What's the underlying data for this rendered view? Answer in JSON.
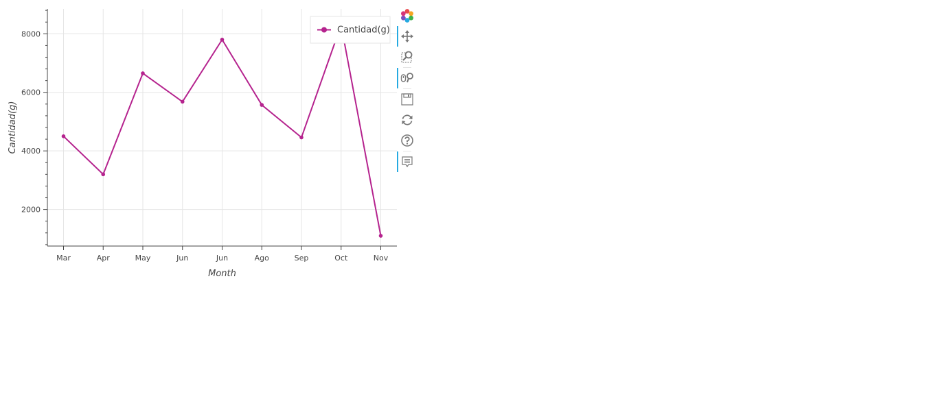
{
  "chart_data": {
    "type": "line",
    "title": "",
    "xlabel": "Month",
    "ylabel": "Cantidad(g)",
    "categories": [
      "Mar",
      "Apr",
      "May",
      "Jun",
      "Jun",
      "Ago",
      "Sep",
      "Oct",
      "Nov"
    ],
    "series": [
      {
        "name": "Cantidad(g)",
        "color": "#b5238e",
        "values": [
          4500,
          3200,
          6650,
          5680,
          7800,
          5570,
          4460,
          8300,
          1100
        ]
      }
    ],
    "yticks": [
      2000,
      4000,
      6000,
      8000
    ],
    "ylim": [
      750,
      8850
    ],
    "grid": true,
    "legend": "top-right"
  },
  "toolbar": {
    "items": [
      {
        "name": "bokeh-logo",
        "icon": "bokeh-logo-icon",
        "active": false
      },
      {
        "name": "pan",
        "icon": "pan-icon",
        "active": true
      },
      {
        "name": "box-zoom",
        "icon": "box-zoom-icon",
        "active": false
      },
      {
        "name": "wheel-zoom",
        "icon": "wheel-zoom-icon",
        "active": true
      },
      {
        "name": "save",
        "icon": "save-icon",
        "active": false
      },
      {
        "name": "reset",
        "icon": "reset-icon",
        "active": false
      },
      {
        "name": "help",
        "icon": "help-icon",
        "active": false
      },
      {
        "name": "hover",
        "icon": "hover-icon",
        "active": true
      }
    ]
  }
}
